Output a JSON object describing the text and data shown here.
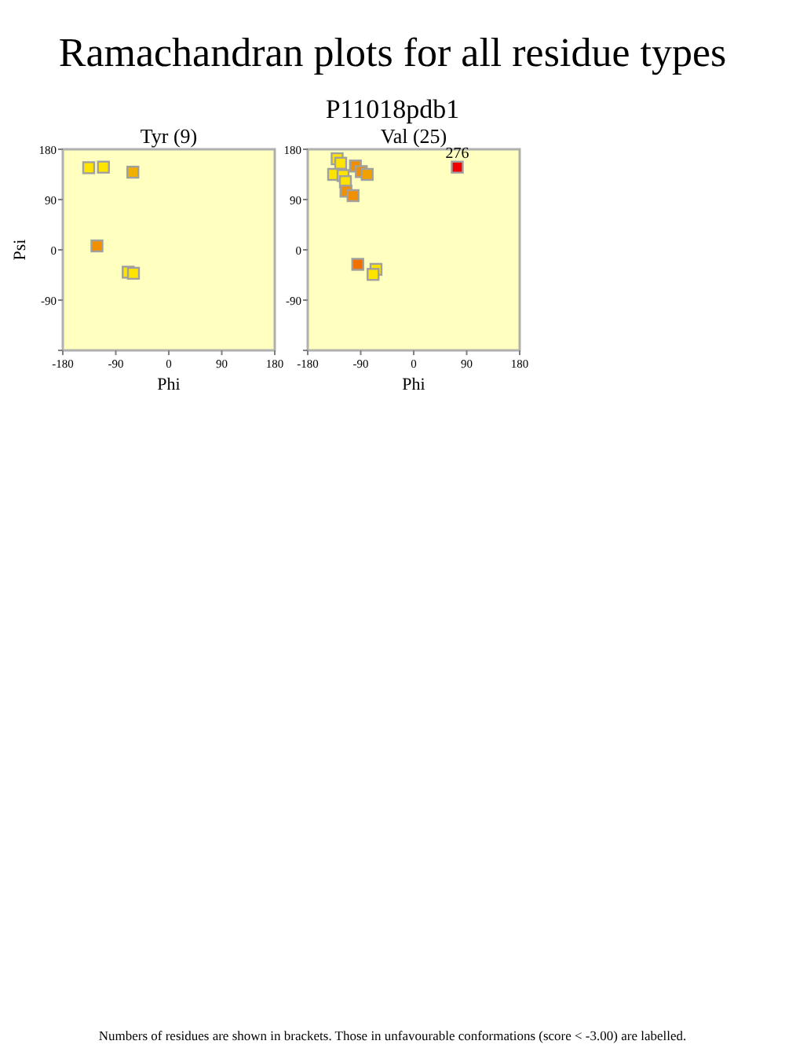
{
  "chart_data": [
    {
      "type": "other",
      "title": "Ramachandran plots for all residue types",
      "subtitle": "P11018pdb1",
      "annotations": [
        "Numbers of residues are shown in brackets. Those in unfavourable conformations (score < -3.00) are labelled."
      ]
    },
    {
      "type": "scatter",
      "title": "Tyr (9)",
      "xlabel": "Phi",
      "ylabel": "Psi",
      "xlim": [
        -180,
        180
      ],
      "ylim": [
        -180,
        180
      ],
      "xticks": [
        -180,
        -90,
        0,
        90,
        180
      ],
      "yticks": [
        {
          "value": -180,
          "label": null
        },
        -90,
        0,
        90,
        180
      ],
      "marker": "square",
      "series": [
        {
          "x": [
            -136,
            -111,
            -61,
            -122,
            -69,
            -60
          ],
          "values": [
            147,
            148,
            139,
            7,
            -40,
            -42
          ],
          "colors": [
            "#ffe400",
            "#ffe400",
            "#f0b000",
            "#f09000",
            "#ffe400",
            "#ffe400"
          ]
        }
      ]
    },
    {
      "type": "scatter",
      "title": "Val (25)",
      "xlabel": "Phi",
      "xlim": [
        -180,
        180
      ],
      "ylim": [
        -180,
        180
      ],
      "xticks": [
        -180,
        -90,
        0,
        90,
        180
      ],
      "yticks": [
        {
          "value": -180,
          "label": null
        },
        -90,
        0,
        90,
        180
      ],
      "marker": "square",
      "series": [
        {
          "x": [
            -130,
            -124,
            -136,
            -120,
            -116,
            -115,
            -103,
            -99,
            -89,
            -79,
            -95,
            -64,
            -69,
            74
          ],
          "values": [
            163,
            155,
            135,
            133,
            122,
            105,
            97,
            150,
            140,
            135,
            -26,
            -35,
            -44,
            148
          ],
          "colors": [
            "#ffe400",
            "#ffe400",
            "#ffe400",
            "#ffe400",
            "#ffe400",
            "#f09000",
            "#f09000",
            "#f09000",
            "#f09000",
            "#f0a000",
            "#f07000",
            "#ffe400",
            "#ffe400",
            "#f00000"
          ]
        }
      ],
      "annotations": [
        {
          "text": "276",
          "x": 74,
          "y": 148
        }
      ]
    }
  ]
}
